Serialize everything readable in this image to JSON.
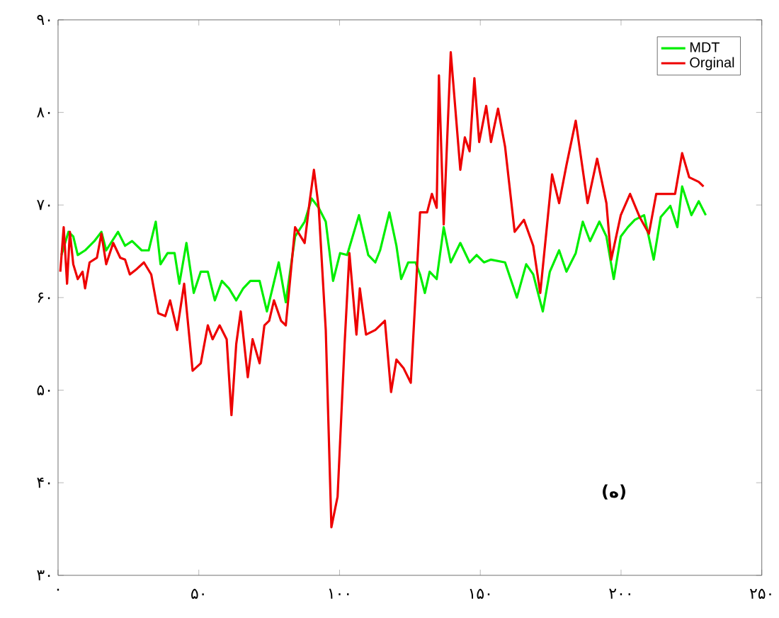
{
  "chart_data": {
    "type": "line",
    "xlim": [
      0,
      250
    ],
    "ylim": [
      30,
      90
    ],
    "xticks": [
      {
        "value": 0,
        "label": "۰"
      },
      {
        "value": 50,
        "label": "۵۰"
      },
      {
        "value": 100,
        "label": "۱۰۰"
      },
      {
        "value": 150,
        "label": "۱۵۰"
      },
      {
        "value": 200,
        "label": "۲۰۰"
      },
      {
        "value": 250,
        "label": "۲۵۰"
      }
    ],
    "yticks": [
      {
        "value": 30,
        "label": "۳۰"
      },
      {
        "value": 40,
        "label": "۴۰"
      },
      {
        "value": 50,
        "label": "۵۰"
      },
      {
        "value": 60,
        "label": "۶۰"
      },
      {
        "value": 70,
        "label": "۷۰"
      },
      {
        "value": 80,
        "label": "۸۰"
      },
      {
        "value": 90,
        "label": "۹۰"
      }
    ],
    "legend": "top right",
    "annotations": [
      "(ه)"
    ],
    "series": [
      {
        "name": "MDT",
        "color": "#00ee00",
        "x": [
          1.2,
          3.7,
          5.4,
          7,
          9.6,
          12.9,
          15.4,
          17.1,
          21.3,
          23.8,
          26.3,
          29.7,
          32.2,
          34.7,
          36.4,
          38.9,
          41.4,
          43.1,
          45.6,
          48.2,
          50.7,
          53.2,
          55.7,
          58.2,
          60.7,
          63.3,
          65.8,
          68.3,
          71.6,
          74.2,
          78.4,
          80.9,
          84.2,
          87.6,
          90.1,
          92.6,
          95.1,
          97.7,
          100.2,
          102.7,
          106.9,
          110.2,
          112.7,
          114.4,
          117.7,
          120.2,
          121.9,
          124.4,
          127,
          128.6,
          130.3,
          132,
          134.5,
          137,
          139.5,
          142.9,
          146.2,
          148.7,
          151.3,
          153.8,
          158.8,
          163,
          166.3,
          168.8,
          172.2,
          174.7,
          178,
          180.6,
          183.9,
          186.4,
          189,
          192.3,
          194.8,
          197.4,
          199.9,
          202.4,
          204.9,
          208.2,
          211.6,
          214.1,
          217.5,
          220,
          221.7,
          225,
          227.6,
          230.1
        ],
        "values": [
          64.6,
          67.1,
          66.6,
          64.6,
          65.1,
          66.1,
          67.1,
          65.1,
          67.1,
          65.6,
          66.1,
          65.1,
          65.1,
          68.2,
          63.6,
          64.8,
          64.8,
          61.5,
          65.9,
          60.5,
          62.8,
          62.8,
          59.7,
          61.8,
          61.0,
          59.7,
          61.0,
          61.8,
          61.8,
          58.5,
          63.8,
          59.5,
          66.6,
          68.2,
          70.7,
          69.7,
          68.2,
          61.8,
          64.8,
          64.6,
          68.9,
          64.6,
          63.8,
          65.1,
          69.2,
          65.6,
          62.0,
          63.8,
          63.8,
          62.5,
          60.5,
          62.8,
          62.0,
          67.6,
          63.8,
          65.9,
          63.8,
          64.6,
          63.8,
          64.1,
          63.8,
          60.0,
          63.6,
          62.5,
          58.5,
          62.8,
          65.1,
          62.8,
          64.8,
          68.2,
          66.1,
          68.2,
          66.6,
          62.0,
          66.6,
          67.6,
          68.4,
          68.9,
          64.1,
          68.7,
          69.9,
          67.6,
          72.0,
          68.9,
          70.4,
          68.9
        ]
      },
      {
        "name": "Orginal",
        "color": "#ee0000",
        "x": [
          0.8,
          2,
          3.2,
          4.2,
          5.4,
          7,
          8.7,
          9.6,
          11.2,
          13.8,
          15.4,
          17.1,
          19.6,
          22.1,
          23.8,
          25.5,
          28,
          30.5,
          33.1,
          35.6,
          38.1,
          39.8,
          42.3,
          44.8,
          47.8,
          50.7,
          53.2,
          54.9,
          57.4,
          59.9,
          61.6,
          63.3,
          64.9,
          67.4,
          69.1,
          71.6,
          73.3,
          75,
          76.7,
          79.2,
          80.9,
          84.2,
          87.6,
          89.3,
          90.9,
          92.6,
          95.1,
          97.1,
          99.3,
          101.8,
          103.5,
          106,
          107.2,
          109.4,
          112.7,
          116.1,
          118.3,
          120.2,
          122.7,
          125.3,
          128.6,
          131.1,
          132.8,
          134.5,
          135.3,
          137,
          139.5,
          142.9,
          144.5,
          146.2,
          147.9,
          149.6,
          152.1,
          153.8,
          156.3,
          158.8,
          162.2,
          165.5,
          168.8,
          171.3,
          175.5,
          178,
          180.6,
          183.9,
          188.1,
          191.5,
          194.8,
          196.5,
          199.9,
          203.2,
          206.6,
          209.9,
          212.5,
          219.2,
          221.7,
          224.2,
          227.6,
          229.3
        ],
        "values": [
          62.8,
          67.6,
          61.5,
          67.1,
          63.6,
          62.0,
          62.8,
          61.0,
          63.8,
          64.3,
          66.9,
          63.6,
          65.9,
          64.3,
          64.1,
          62.5,
          63.1,
          63.8,
          62.5,
          58.3,
          58.0,
          59.7,
          56.5,
          61.5,
          52.1,
          52.9,
          57.0,
          55.5,
          57.0,
          55.5,
          47.3,
          55.0,
          58.5,
          51.4,
          55.5,
          52.9,
          57.0,
          57.5,
          59.7,
          57.5,
          57.0,
          67.6,
          65.9,
          70.2,
          73.8,
          69.7,
          56.5,
          35.2,
          38.5,
          55.0,
          64.8,
          56.0,
          61.0,
          56.0,
          56.5,
          57.5,
          49.8,
          53.3,
          52.4,
          50.8,
          69.2,
          69.2,
          71.2,
          69.7,
          84.0,
          67.9,
          86.5,
          73.8,
          77.3,
          75.8,
          83.7,
          76.8,
          80.7,
          76.8,
          80.4,
          76.3,
          67.1,
          68.4,
          65.6,
          60.5,
          73.3,
          70.2,
          74.3,
          79.1,
          70.2,
          75.0,
          70.2,
          64.1,
          68.9,
          71.2,
          68.7,
          66.9,
          71.2,
          71.2,
          75.6,
          73.0,
          72.5,
          72.0
        ]
      }
    ]
  }
}
